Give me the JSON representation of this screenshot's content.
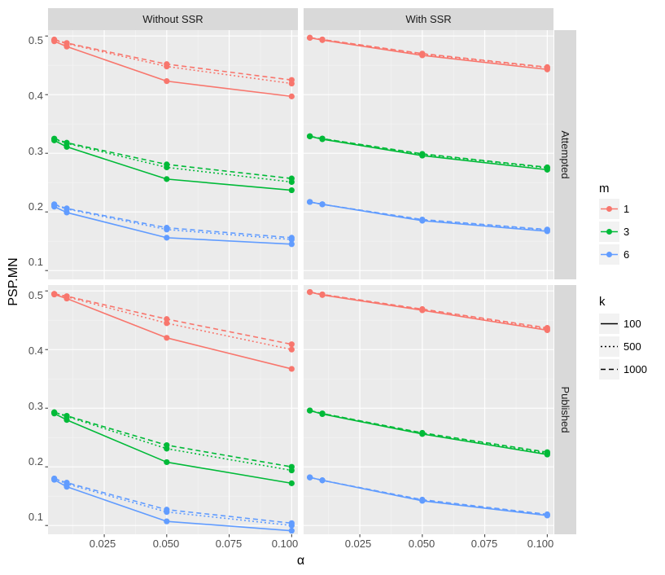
{
  "chart_data": {
    "type": "line",
    "xlabel": "α",
    "ylabel": "PSP.MN",
    "xlim": [
      0.0025,
      0.1025
    ],
    "ylim": [
      0.085,
      0.51
    ],
    "x_ticks": [
      0.025,
      0.05,
      0.075,
      0.1
    ],
    "x_tick_labels": [
      "0.025",
      "0.050",
      "0.075",
      "0.100"
    ],
    "y_ticks": [
      0.1,
      0.2,
      0.3,
      0.4,
      0.5
    ],
    "y_tick_labels": [
      "0.1",
      "0.2",
      "0.3",
      "0.4",
      "0.5"
    ],
    "x": [
      0.005,
      0.01,
      0.05,
      0.1
    ],
    "columns": [
      "Without SSR",
      "With SSR"
    ],
    "rows": [
      "Attempted",
      "Published"
    ],
    "m_colors": {
      "1": "#F8766D",
      "3": "#00BA38",
      "6": "#619CFF"
    },
    "legend_m": {
      "title": "m",
      "items": [
        "1",
        "3",
        "6"
      ]
    },
    "legend_k": {
      "title": "k",
      "items": [
        "100",
        "500",
        "1000"
      ]
    },
    "k_dash": {
      "100": "",
      "500": "2,3",
      "1000": "6,4"
    },
    "panels": [
      {
        "col": 0,
        "row": 0,
        "series": [
          {
            "m": "1",
            "k": "100",
            "values": [
              0.491,
              0.482,
              0.423,
              0.397
            ]
          },
          {
            "m": "1",
            "k": "500",
            "values": [
              0.493,
              0.487,
              0.448,
              0.419
            ]
          },
          {
            "m": "1",
            "k": "1000",
            "values": [
              0.494,
              0.488,
              0.452,
              0.425
            ]
          },
          {
            "m": "3",
            "k": "100",
            "values": [
              0.322,
              0.311,
              0.256,
              0.237
            ]
          },
          {
            "m": "3",
            "k": "500",
            "values": [
              0.324,
              0.317,
              0.276,
              0.251
            ]
          },
          {
            "m": "3",
            "k": "1000",
            "values": [
              0.325,
              0.318,
              0.281,
              0.257
            ]
          },
          {
            "m": "6",
            "k": "100",
            "values": [
              0.209,
              0.199,
              0.156,
              0.145
            ]
          },
          {
            "m": "6",
            "k": "500",
            "values": [
              0.212,
              0.205,
              0.17,
              0.153
            ]
          },
          {
            "m": "6",
            "k": "1000",
            "values": [
              0.213,
              0.206,
              0.173,
              0.156
            ]
          }
        ]
      },
      {
        "col": 1,
        "row": 0,
        "series": [
          {
            "m": "1",
            "k": "100",
            "values": [
              0.497,
              0.493,
              0.467,
              0.443
            ]
          },
          {
            "m": "1",
            "k": "500",
            "values": [
              0.497,
              0.494,
              0.469,
              0.446
            ]
          },
          {
            "m": "1",
            "k": "1000",
            "values": [
              0.497,
              0.494,
              0.47,
              0.447
            ]
          },
          {
            "m": "3",
            "k": "100",
            "values": [
              0.329,
              0.324,
              0.296,
              0.272
            ]
          },
          {
            "m": "3",
            "k": "500",
            "values": [
              0.329,
              0.325,
              0.298,
              0.275
            ]
          },
          {
            "m": "3",
            "k": "1000",
            "values": [
              0.329,
              0.325,
              0.299,
              0.276
            ]
          },
          {
            "m": "6",
            "k": "100",
            "values": [
              0.217,
              0.213,
              0.185,
              0.167
            ]
          },
          {
            "m": "6",
            "k": "500",
            "values": [
              0.217,
              0.213,
              0.186,
              0.169
            ]
          },
          {
            "m": "6",
            "k": "1000",
            "values": [
              0.217,
              0.213,
              0.187,
              0.17
            ]
          }
        ]
      },
      {
        "col": 0,
        "row": 1,
        "series": [
          {
            "m": "1",
            "k": "100",
            "values": [
              0.494,
              0.487,
              0.42,
              0.367
            ]
          },
          {
            "m": "1",
            "k": "500",
            "values": [
              0.495,
              0.49,
              0.445,
              0.4
            ]
          },
          {
            "m": "1",
            "k": "1000",
            "values": [
              0.495,
              0.491,
              0.452,
              0.409
            ]
          },
          {
            "m": "3",
            "k": "100",
            "values": [
              0.291,
              0.28,
              0.208,
              0.172
            ]
          },
          {
            "m": "3",
            "k": "500",
            "values": [
              0.293,
              0.286,
              0.231,
              0.194
            ]
          },
          {
            "m": "3",
            "k": "1000",
            "values": [
              0.293,
              0.287,
              0.237,
              0.2
            ]
          },
          {
            "m": "6",
            "k": "100",
            "values": [
              0.178,
              0.166,
              0.107,
              0.091
            ]
          },
          {
            "m": "6",
            "k": "500",
            "values": [
              0.18,
              0.171,
              0.123,
              0.1
            ]
          },
          {
            "m": "6",
            "k": "1000",
            "values": [
              0.18,
              0.173,
              0.127,
              0.104
            ]
          }
        ]
      },
      {
        "col": 1,
        "row": 1,
        "series": [
          {
            "m": "1",
            "k": "100",
            "values": [
              0.498,
              0.493,
              0.467,
              0.433
            ]
          },
          {
            "m": "1",
            "k": "500",
            "values": [
              0.498,
              0.494,
              0.468,
              0.435
            ]
          },
          {
            "m": "1",
            "k": "1000",
            "values": [
              0.498,
              0.494,
              0.469,
              0.437
            ]
          },
          {
            "m": "3",
            "k": "100",
            "values": [
              0.296,
              0.29,
              0.256,
              0.221
            ]
          },
          {
            "m": "3",
            "k": "500",
            "values": [
              0.296,
              0.291,
              0.257,
              0.223
            ]
          },
          {
            "m": "3",
            "k": "1000",
            "values": [
              0.296,
              0.291,
              0.258,
              0.225
            ]
          },
          {
            "m": "6",
            "k": "100",
            "values": [
              0.182,
              0.177,
              0.142,
              0.117
            ]
          },
          {
            "m": "6",
            "k": "500",
            "values": [
              0.182,
              0.177,
              0.143,
              0.118
            ]
          },
          {
            "m": "6",
            "k": "1000",
            "values": [
              0.182,
              0.177,
              0.144,
              0.119
            ]
          }
        ]
      }
    ]
  }
}
